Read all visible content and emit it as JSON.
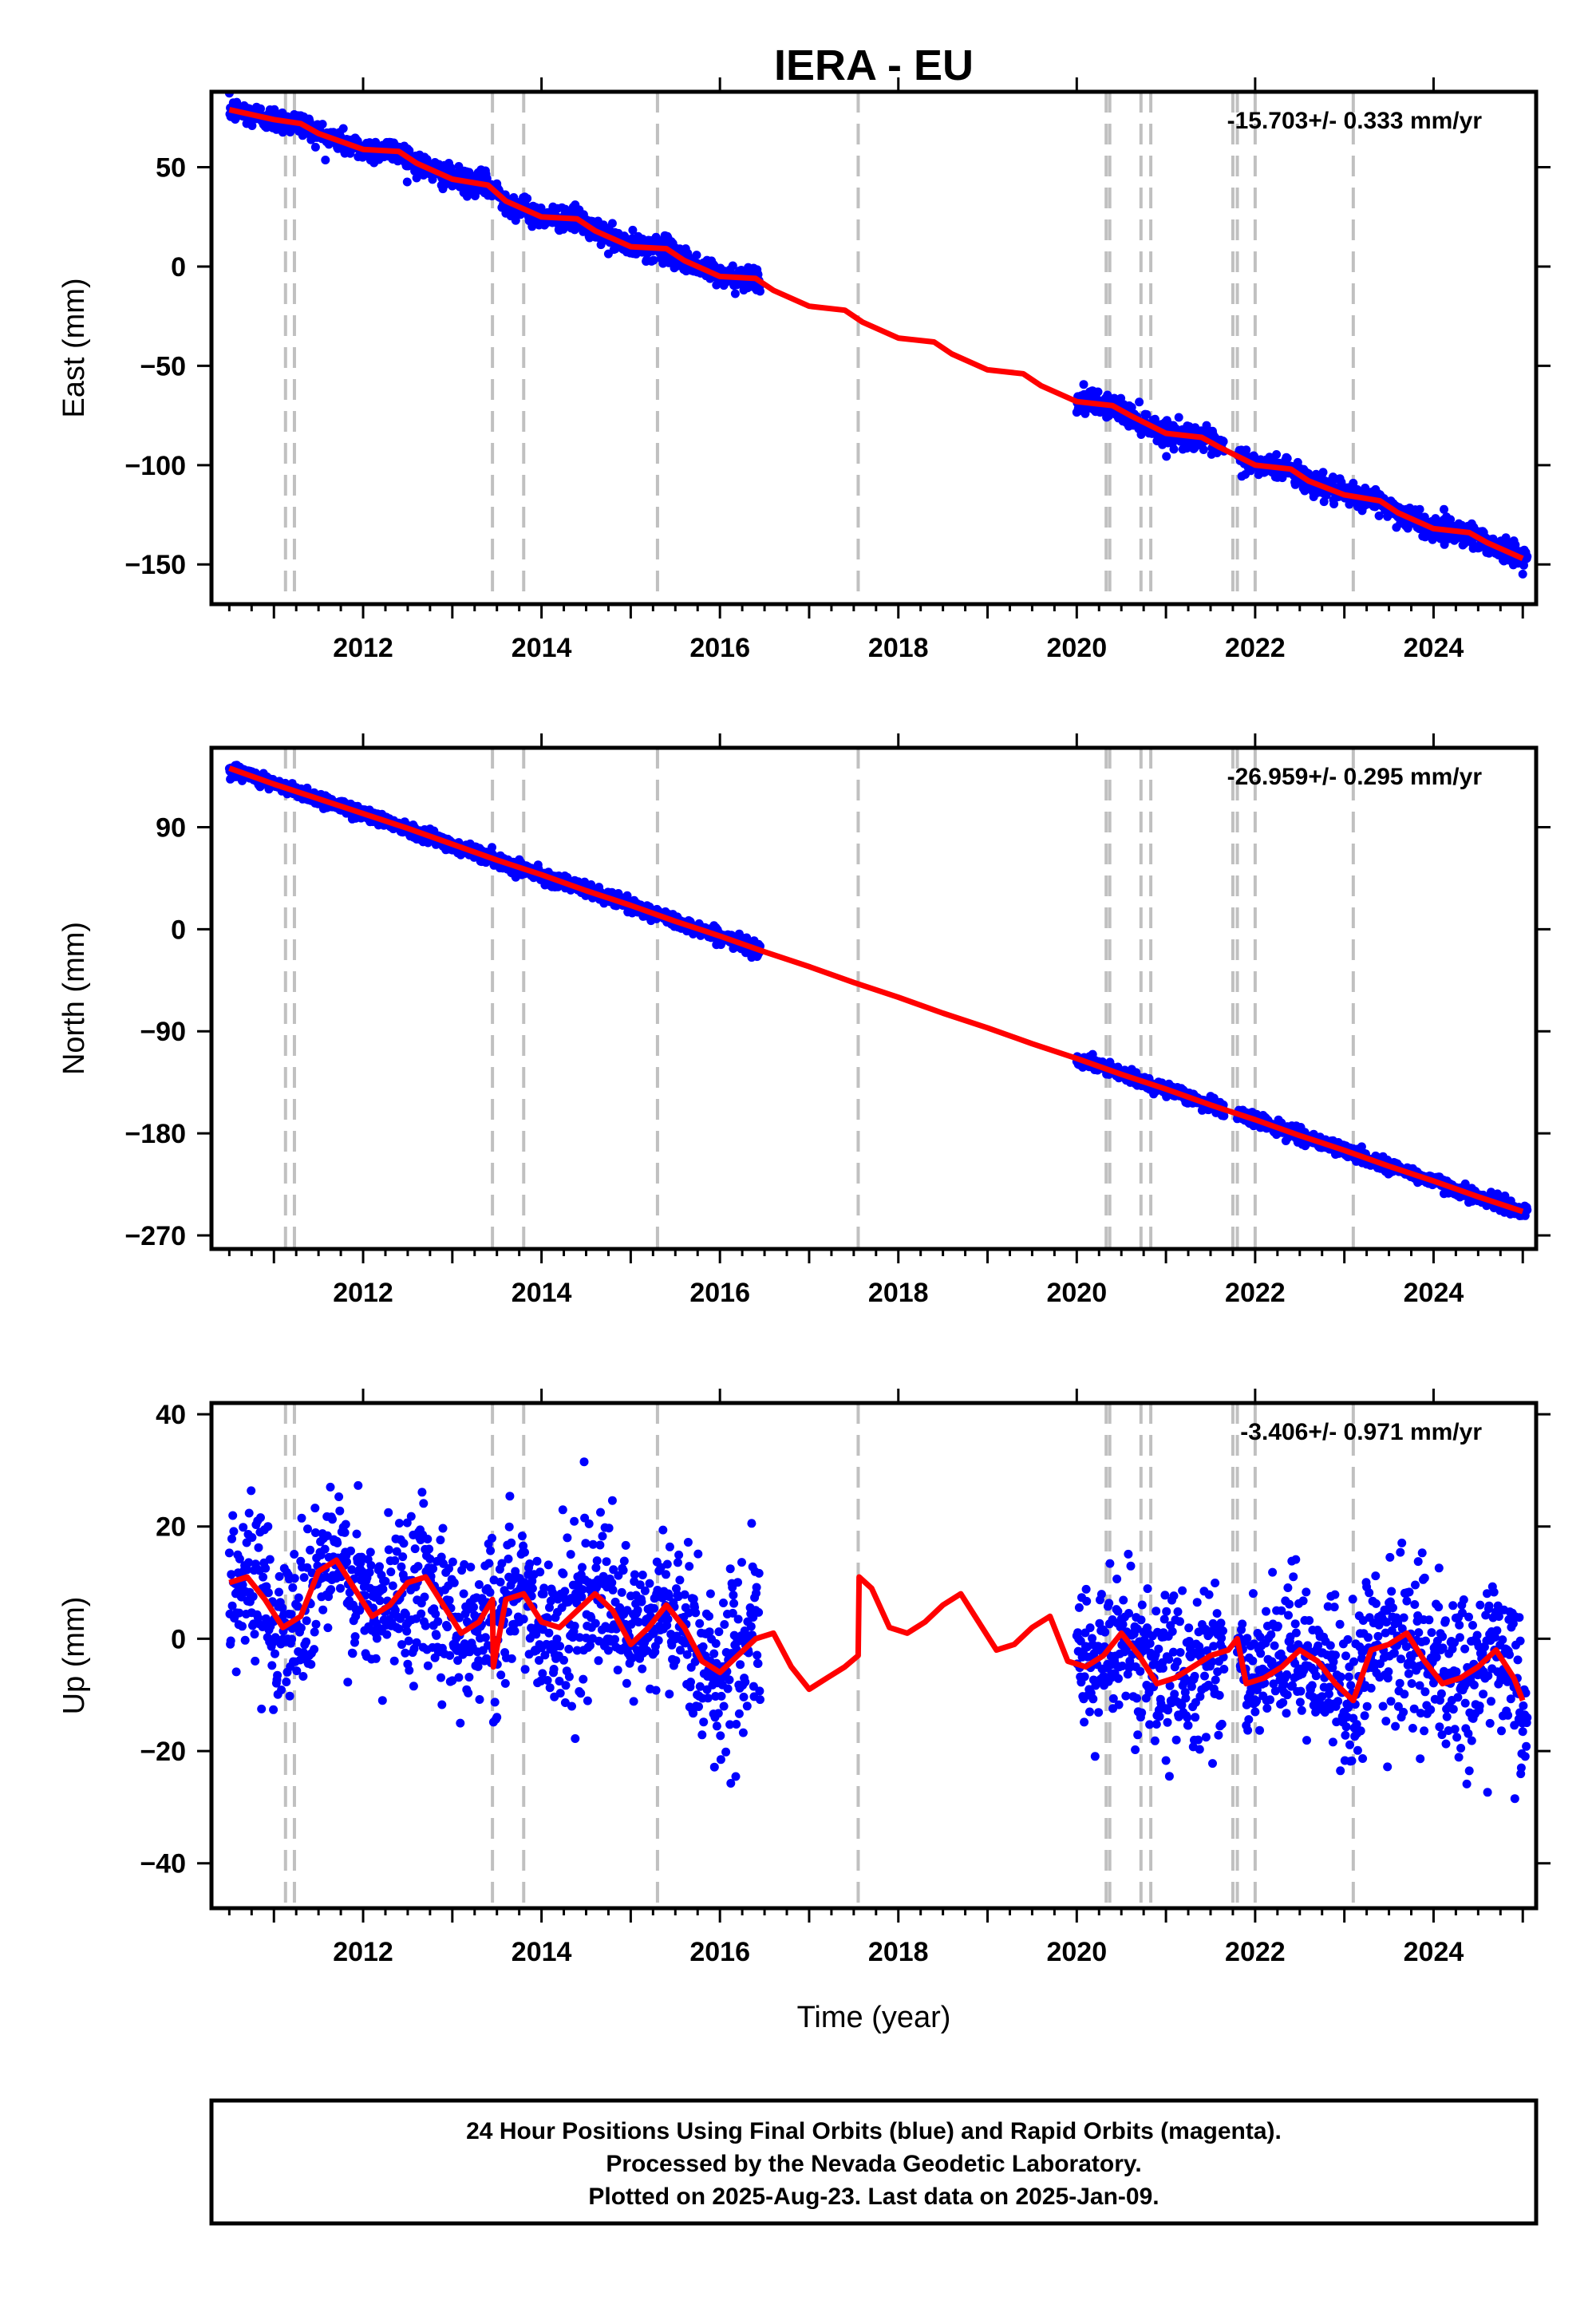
{
  "title": "IERA - EU",
  "xlabel": "Time (year)",
  "footer": {
    "lines": [
      "24 Hour Positions Using Final Orbits (blue) and Rapid Orbits (magenta).",
      "Processed by the Nevada Geodetic Laboratory.",
      "Plotted on 2025-Aug-23. Last data on 2025-Jan-09."
    ]
  },
  "colors": {
    "data_points": "#0000ff",
    "model_line": "#ff0000",
    "event_lines": "#c0c0c0",
    "frame": "#000000"
  },
  "event_lines_year": [
    2011.13,
    2011.23,
    2013.45,
    2013.8,
    2015.3,
    2017.55,
    2020.33,
    2020.37,
    2020.72,
    2020.83,
    2021.75,
    2021.8,
    2022.0,
    2023.1
  ],
  "chart_data": [
    {
      "type": "scatter",
      "name": "east",
      "ylabel": "East (mm)",
      "rate": "-15.703+/- 0.333 mm/yr",
      "xlim": [
        2010.3,
        2025.15
      ],
      "ylim": [
        -170,
        88
      ],
      "xticks": [
        2012,
        2014,
        2016,
        2018,
        2020,
        2022,
        2024
      ],
      "yticks": [
        -150,
        -100,
        -50,
        0,
        50
      ],
      "data_segments": [
        [
          2010.5,
          2016.45
        ],
        [
          2020.0,
          2021.65
        ],
        [
          2021.8,
          2025.05
        ]
      ],
      "noise_sd_mm": 3.0,
      "model": {
        "x": [
          2010.5,
          2011.0,
          2011.3,
          2011.5,
          2012.0,
          2012.4,
          2012.6,
          2013.0,
          2013.4,
          2013.6,
          2014.0,
          2014.4,
          2014.6,
          2015.0,
          2015.4,
          2015.6,
          2016.0,
          2016.4,
          2016.6,
          2017.0,
          2017.4,
          2017.6,
          2018.0,
          2018.4,
          2018.6,
          2019.0,
          2019.4,
          2019.6,
          2020.0,
          2020.4,
          2020.6,
          2021.0,
          2021.4,
          2021.6,
          2022.0,
          2022.4,
          2022.6,
          2023.0,
          2023.4,
          2023.6,
          2024.0,
          2024.4,
          2024.6,
          2025.0
        ],
        "y": [
          79,
          74,
          72,
          67,
          59,
          58,
          52,
          44,
          41,
          33,
          25,
          24,
          18,
          10,
          9,
          3,
          -5,
          -6,
          -12,
          -20,
          -22,
          -28,
          -36,
          -38,
          -44,
          -52,
          -54,
          -60,
          -68,
          -70,
          -75,
          -84,
          -86,
          -91,
          -100,
          -102,
          -108,
          -115,
          -118,
          -124,
          -132,
          -134,
          -139,
          -147
        ]
      }
    },
    {
      "type": "scatter",
      "name": "north",
      "ylabel": "North (mm)",
      "rate": "-26.959+/- 0.295 mm/yr",
      "xlim": [
        2010.3,
        2025.15
      ],
      "ylim": [
        -282,
        160
      ],
      "xticks": [
        2012,
        2014,
        2016,
        2018,
        2020,
        2022,
        2024
      ],
      "yticks": [
        -270,
        -180,
        -90,
        0,
        90
      ],
      "data_segments": [
        [
          2010.5,
          2016.45
        ],
        [
          2020.0,
          2021.65
        ],
        [
          2021.8,
          2025.05
        ]
      ],
      "noise_sd_mm": 3.0,
      "model": {
        "x": [
          2010.5,
          2011.0,
          2011.5,
          2012.0,
          2012.5,
          2013.0,
          2013.5,
          2014.0,
          2014.5,
          2015.0,
          2015.5,
          2016.0,
          2016.5,
          2017.0,
          2017.5,
          2018.0,
          2018.5,
          2019.0,
          2019.5,
          2020.0,
          2020.5,
          2021.0,
          2021.5,
          2022.0,
          2022.5,
          2023.0,
          2023.5,
          2024.0,
          2024.5,
          2025.0
        ],
        "y": [
          142,
          128,
          115,
          102,
          89,
          75,
          61,
          48,
          34,
          21,
          7,
          -6,
          -20,
          -33,
          -47,
          -60,
          -74,
          -87,
          -101,
          -114,
          -128,
          -141,
          -155,
          -168,
          -182,
          -195,
          -209,
          -222,
          -236,
          -249
        ]
      }
    },
    {
      "type": "scatter",
      "name": "up",
      "ylabel": "Up (mm)",
      "rate": "-3.406+/- 0.971 mm/yr",
      "xlim": [
        2010.3,
        2025.15
      ],
      "ylim": [
        -48,
        42
      ],
      "xticks": [
        2012,
        2014,
        2016,
        2018,
        2020,
        2022,
        2024
      ],
      "yticks": [
        -40,
        -20,
        0,
        20,
        40
      ],
      "data_segments": [
        [
          2010.5,
          2016.45
        ],
        [
          2020.0,
          2021.65
        ],
        [
          2021.8,
          2025.05
        ]
      ],
      "noise_sd_mm": 7.0,
      "model": {
        "x": [
          2010.5,
          2010.7,
          2010.9,
          2011.1,
          2011.3,
          2011.5,
          2011.7,
          2011.9,
          2012.1,
          2012.3,
          2012.5,
          2012.7,
          2012.9,
          2013.1,
          2013.3,
          2013.45,
          2013.46,
          2013.6,
          2013.8,
          2014.0,
          2014.2,
          2014.4,
          2014.6,
          2014.8,
          2015.0,
          2015.2,
          2015.4,
          2015.6,
          2015.8,
          2016.0,
          2016.2,
          2016.4,
          2016.6,
          2016.8,
          2017.0,
          2017.2,
          2017.4,
          2017.55,
          2017.56,
          2017.7,
          2017.9,
          2018.1,
          2018.3,
          2018.5,
          2018.7,
          2018.9,
          2019.1,
          2019.3,
          2019.5,
          2019.7,
          2019.9,
          2020.1,
          2020.3,
          2020.5,
          2020.7,
          2020.9,
          2021.1,
          2021.3,
          2021.5,
          2021.7,
          2021.8,
          2021.9,
          2022.1,
          2022.3,
          2022.5,
          2022.7,
          2022.9,
          2023.1,
          2023.3,
          2023.5,
          2023.7,
          2023.9,
          2024.1,
          2024.3,
          2024.5,
          2024.7,
          2024.9,
          2025.0
        ],
        "y": [
          10,
          11,
          7,
          2,
          4,
          12,
          14,
          9,
          4,
          6,
          10,
          11,
          6,
          1,
          3,
          7,
          -5,
          7,
          8,
          3,
          2,
          5,
          8,
          5,
          -1,
          2,
          6,
          2,
          -4,
          -6,
          -3,
          0,
          1,
          -5,
          -9,
          -7,
          -5,
          -3,
          11,
          9,
          2,
          1,
          3,
          6,
          8,
          3,
          -2,
          -1,
          2,
          4,
          -4,
          -5,
          -3,
          1,
          -3,
          -8,
          -7,
          -5,
          -3,
          -2,
          0,
          -8,
          -7,
          -5,
          -2,
          -4,
          -8,
          -11,
          -2,
          -1,
          1,
          -4,
          -8,
          -7,
          -5,
          -2,
          -7,
          -11
        ]
      }
    }
  ]
}
